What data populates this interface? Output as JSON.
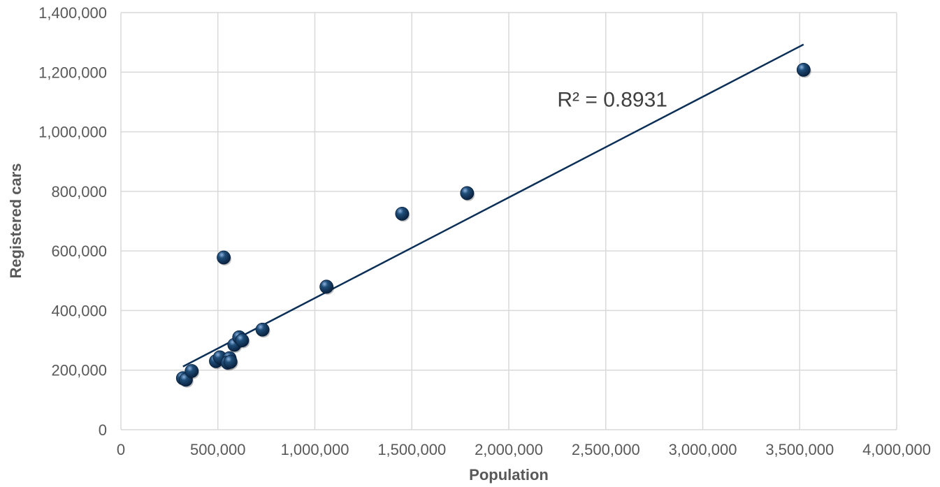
{
  "chart_data": {
    "type": "scatter",
    "xlabel": "Population",
    "ylabel": "Registered cars",
    "xlim": [
      0,
      4000000
    ],
    "ylim": [
      0,
      1400000
    ],
    "x_ticks": [
      0,
      500000,
      1000000,
      1500000,
      2000000,
      2500000,
      3000000,
      3500000,
      4000000
    ],
    "y_ticks": [
      0,
      200000,
      400000,
      600000,
      800000,
      1000000,
      1200000,
      1400000
    ],
    "x_tick_labels": [
      "0",
      "500,000",
      "1,000,000",
      "1,500,000",
      "2,000,000",
      "2,500,000",
      "3,000,000",
      "3,500,000",
      "4,000,000"
    ],
    "y_tick_labels": [
      "0",
      "200,000",
      "400,000",
      "600,000",
      "800,000",
      "1,000,000",
      "1,200,000",
      "1,400,000"
    ],
    "grid": true,
    "marker_color": "#1f4e79",
    "trendline_color": "#0b2f57",
    "grid_color": "#d9d9d9",
    "points": [
      {
        "x": 320000,
        "y": 173000
      },
      {
        "x": 335000,
        "y": 168000
      },
      {
        "x": 365000,
        "y": 197000
      },
      {
        "x": 490000,
        "y": 230000
      },
      {
        "x": 510000,
        "y": 243000
      },
      {
        "x": 530000,
        "y": 578000
      },
      {
        "x": 560000,
        "y": 240000
      },
      {
        "x": 550000,
        "y": 225000
      },
      {
        "x": 565000,
        "y": 228000
      },
      {
        "x": 585000,
        "y": 285000
      },
      {
        "x": 610000,
        "y": 310000
      },
      {
        "x": 625000,
        "y": 300000
      },
      {
        "x": 730000,
        "y": 336000
      },
      {
        "x": 1060000,
        "y": 480000
      },
      {
        "x": 1450000,
        "y": 725000
      },
      {
        "x": 1785000,
        "y": 794000
      },
      {
        "x": 3520000,
        "y": 1208000
      }
    ],
    "trendline": {
      "type": "linear",
      "x_start": 320000,
      "y_start": 212000,
      "x_end": 3520000,
      "y_end": 1293000
    },
    "annotations": [
      {
        "text": "R² = 0.8931",
        "x": 2250000,
        "y": 1110000
      }
    ]
  }
}
